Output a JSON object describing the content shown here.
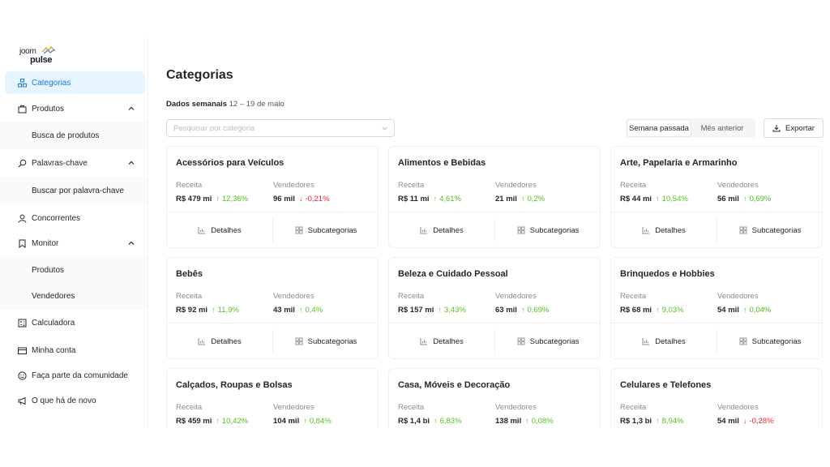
{
  "logo": {
    "line1": "joom",
    "line2": "pulse"
  },
  "nav": {
    "categorias": "Categorias",
    "produtos": "Produtos",
    "busca_produtos": "Busca de produtos",
    "palavras_chave": "Palavras-chave",
    "buscar_palavra": "Buscar por palavra-chave",
    "concorrentes": "Concorrentes",
    "monitor": "Monitor",
    "monitor_produtos": "Produtos",
    "monitor_vendedores": "Vendedores",
    "calculadora": "Calculadora",
    "minha_conta": "Minha conta",
    "comunidade": "Faça parte da comunidade",
    "novidades": "O que há de novo"
  },
  "header": {
    "title": "Categorias",
    "week_label": "Dados semanais",
    "week_range": "12 – 19 de maio",
    "search_placeholder": "Pesquisar por categoria",
    "seg_last_week": "Semana passada",
    "seg_prev_month": "Mês anterior",
    "export": "Exportar"
  },
  "card_labels": {
    "revenue": "Receita",
    "sellers": "Vendedores",
    "details": "Detalhes",
    "subcategories": "Subcategorias"
  },
  "cards": [
    {
      "name": "Acessórios para Veículos",
      "revenue": "R$ 479 mi",
      "revenue_change": "12,36%",
      "revenue_trend": "up",
      "sellers": "96 mil",
      "sellers_change": "-0,21%",
      "sellers_trend": "down"
    },
    {
      "name": "Alimentos e Bebidas",
      "revenue": "R$ 11 mi",
      "revenue_change": "4,61%",
      "revenue_trend": "up",
      "sellers": "21 mil",
      "sellers_change": "0,2%",
      "sellers_trend": "up"
    },
    {
      "name": "Arte, Papelaria e Armarinho",
      "revenue": "R$ 44 mi",
      "revenue_change": "10,54%",
      "revenue_trend": "up",
      "sellers": "56 mil",
      "sellers_change": "0,69%",
      "sellers_trend": "up"
    },
    {
      "name": "Bebês",
      "revenue": "R$ 92 mi",
      "revenue_change": "11,9%",
      "revenue_trend": "up",
      "sellers": "43 mil",
      "sellers_change": "0,4%",
      "sellers_trend": "up"
    },
    {
      "name": "Beleza e Cuidado Pessoal",
      "revenue": "R$ 157 mi",
      "revenue_change": "3,43%",
      "revenue_trend": "up",
      "sellers": "63 mil",
      "sellers_change": "0,69%",
      "sellers_trend": "up"
    },
    {
      "name": "Brinquedos e Hobbies",
      "revenue": "R$ 68 mi",
      "revenue_change": "9,03%",
      "revenue_trend": "up",
      "sellers": "54 mil",
      "sellers_change": "0,04%",
      "sellers_trend": "up"
    },
    {
      "name": "Calçados, Roupas e Bolsas",
      "revenue": "R$ 459 mi",
      "revenue_change": "10,42%",
      "revenue_trend": "up",
      "sellers": "104 mil",
      "sellers_change": "0,84%",
      "sellers_trend": "up"
    },
    {
      "name": "Casa, Móveis e Decoração",
      "revenue": "R$ 1,4 bi",
      "revenue_change": "6,83%",
      "revenue_trend": "up",
      "sellers": "138 mil",
      "sellers_change": "0,08%",
      "sellers_trend": "up"
    },
    {
      "name": "Celulares e Telefones",
      "revenue": "R$ 1,3 bi",
      "revenue_change": "8,94%",
      "revenue_trend": "up",
      "sellers": "54 mil",
      "sellers_change": "-0,28%",
      "sellers_trend": "down"
    }
  ],
  "colors": {
    "accent": "#1677ff",
    "up": "#52c41a",
    "down": "#f5222d"
  },
  "icons": [
    "category-icon",
    "bag-icon",
    "search-icon",
    "person-icon",
    "bookmark-icon",
    "calculator-icon",
    "card-icon",
    "smile-icon",
    "megaphone-icon",
    "chevron-up-icon",
    "download-icon",
    "chart-icon",
    "grid-icon"
  ]
}
